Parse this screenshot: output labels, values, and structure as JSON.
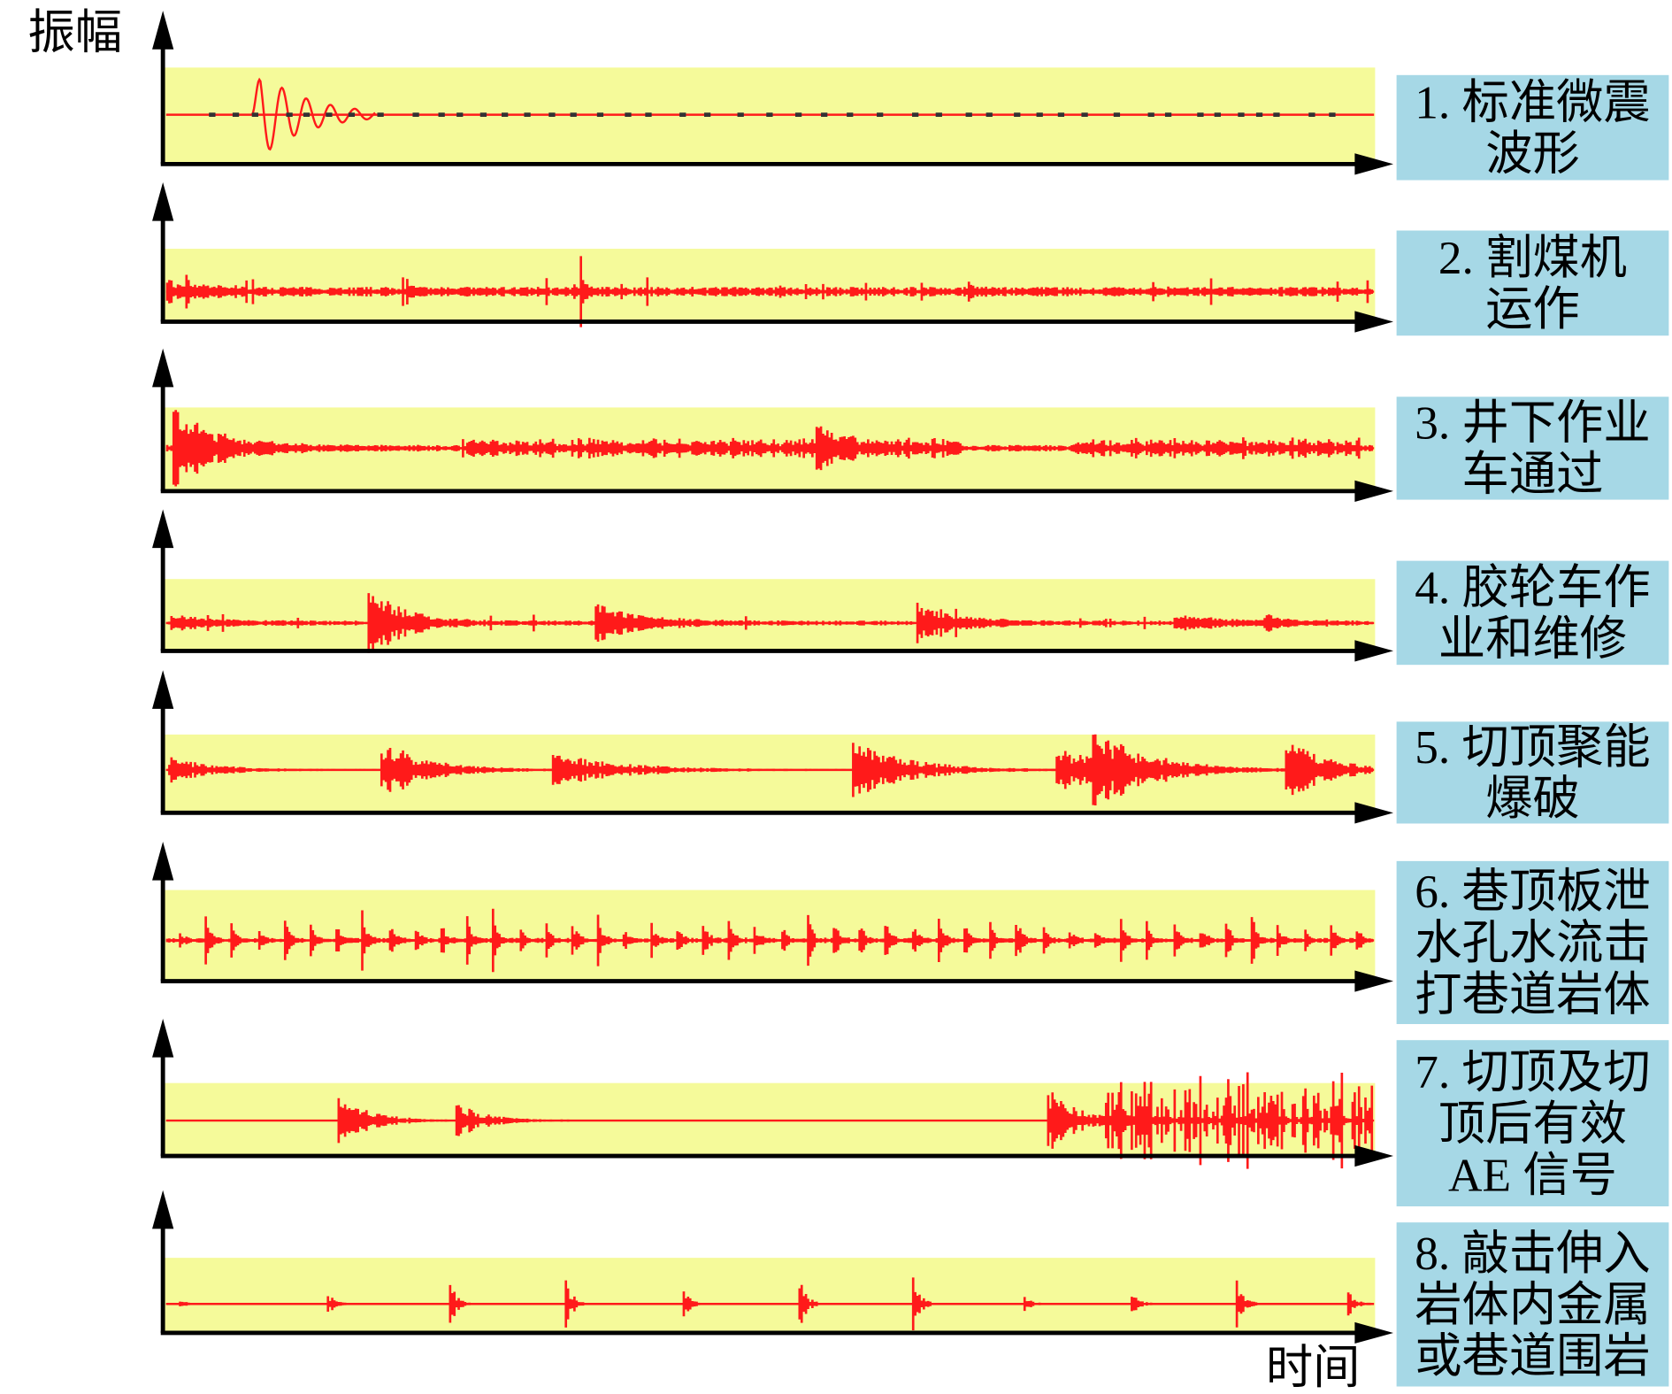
{
  "axes": {
    "y_label": "振幅",
    "x_label": "时间"
  },
  "panels": [
    {
      "label": [
        "1. 标准微震",
        "波形"
      ]
    },
    {
      "label": [
        "2. 割煤机",
        "运作"
      ]
    },
    {
      "label": [
        "3. 井下作业",
        "车通过"
      ]
    },
    {
      "label": [
        "4. 胶轮车作",
        "业和维修"
      ]
    },
    {
      "label": [
        "5. 切顶聚能",
        "爆破"
      ]
    },
    {
      "label": [
        "6. 巷顶板泄",
        "水孔水流击",
        "打巷道岩体"
      ]
    },
    {
      "label": [
        "7. 切顶及切",
        "顶后有效",
        "AE 信号"
      ]
    },
    {
      "label": [
        "8. 敲击伸入",
        "岩体内金属",
        "或巷道围岩"
      ]
    }
  ]
}
